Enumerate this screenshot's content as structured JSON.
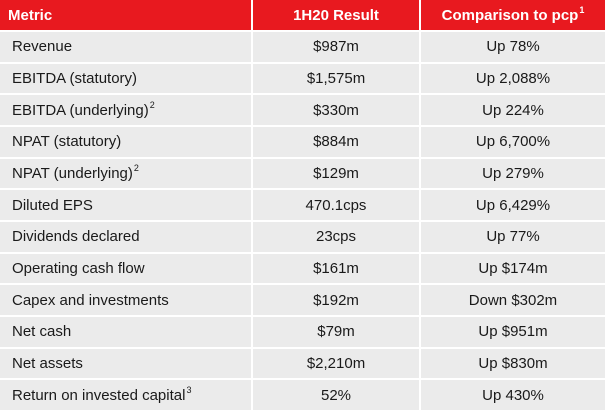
{
  "accent_color": "#e8191f",
  "row_bg_color": "#ebebeb",
  "header": {
    "metric": "Metric",
    "result": "1H20 Result",
    "comparison": "Comparison to pcp",
    "comparison_footnote": "1"
  },
  "rows": [
    {
      "metric": "Revenue",
      "footnote": "",
      "result": "$987m",
      "comparison": "Up 78%"
    },
    {
      "metric": "EBITDA (statutory)",
      "footnote": "",
      "result": "$1,575m",
      "comparison": "Up 2,088%"
    },
    {
      "metric": "EBITDA (underlying)",
      "footnote": "2",
      "result": "$330m",
      "comparison": "Up 224%"
    },
    {
      "metric": "NPAT (statutory)",
      "footnote": "",
      "result": "$884m",
      "comparison": "Up 6,700%"
    },
    {
      "metric": "NPAT (underlying)",
      "footnote": "2",
      "result": "$129m",
      "comparison": "Up 279%"
    },
    {
      "metric": "Diluted EPS",
      "footnote": "",
      "result": "470.1cps",
      "comparison": "Up 6,429%"
    },
    {
      "metric": "Dividends declared",
      "footnote": "",
      "result": "23cps",
      "comparison": "Up 77%"
    },
    {
      "metric": "Operating cash flow",
      "footnote": "",
      "result": "$161m",
      "comparison": "Up $174m"
    },
    {
      "metric": "Capex and investments",
      "footnote": "",
      "result": "$192m",
      "comparison": "Down $302m"
    },
    {
      "metric": "Net cash",
      "footnote": "",
      "result": "$79m",
      "comparison": "Up $951m"
    },
    {
      "metric": "Net assets",
      "footnote": "",
      "result": "$2,210m",
      "comparison": "Up $830m"
    },
    {
      "metric": "Return on invested capital",
      "footnote": "3",
      "result": "52%",
      "comparison": "Up 430%"
    }
  ]
}
